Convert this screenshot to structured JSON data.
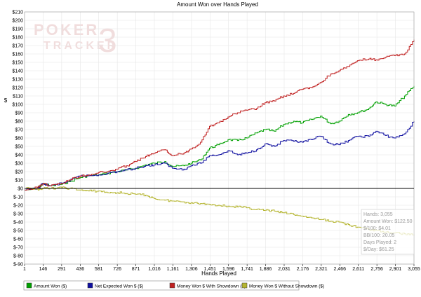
{
  "chart_data": {
    "type": "line",
    "title": "Amount Won over Hands Played",
    "xlabel": "Hands Played",
    "ylabel": "$",
    "xlim": [
      1,
      3055
    ],
    "ylim": [
      -90,
      210
    ],
    "x_ticks": [
      "1",
      "146",
      "291",
      "436",
      "581",
      "726",
      "871",
      "1,016",
      "1,161",
      "1,306",
      "1,451",
      "1,596",
      "1,741",
      "1,886",
      "2,031",
      "2,176",
      "2,321",
      "2,466",
      "2,611",
      "2,756",
      "2,901",
      "3,055"
    ],
    "y_ticks": [
      {
        "value": 210,
        "label": "$210"
      },
      {
        "value": 200,
        "label": "$200"
      },
      {
        "value": 190,
        "label": "$190"
      },
      {
        "value": 180,
        "label": "$180"
      },
      {
        "value": 170,
        "label": "$170"
      },
      {
        "value": 160,
        "label": "$160"
      },
      {
        "value": 150,
        "label": "$150"
      },
      {
        "value": 140,
        "label": "$140"
      },
      {
        "value": 130,
        "label": "$130"
      },
      {
        "value": 120,
        "label": "$120"
      },
      {
        "value": 110,
        "label": "$110"
      },
      {
        "value": 100,
        "label": "$100"
      },
      {
        "value": 90,
        "label": "$90"
      },
      {
        "value": 80,
        "label": "$80"
      },
      {
        "value": 70,
        "label": "$70"
      },
      {
        "value": 60,
        "label": "$60"
      },
      {
        "value": 50,
        "label": "$50"
      },
      {
        "value": 40,
        "label": "$40"
      },
      {
        "value": 30,
        "label": "$30"
      },
      {
        "value": 20,
        "label": "$20"
      },
      {
        "value": 10,
        "label": "$10"
      },
      {
        "value": 0,
        "label": "$0"
      },
      {
        "value": -10,
        "label": "$-10"
      },
      {
        "value": -20,
        "label": "$-20"
      },
      {
        "value": -30,
        "label": "$-30"
      },
      {
        "value": -40,
        "label": "$-40"
      },
      {
        "value": -50,
        "label": "$-50"
      },
      {
        "value": -60,
        "label": "$-60"
      },
      {
        "value": -70,
        "label": "$-70"
      },
      {
        "value": -80,
        "label": "$-80"
      },
      {
        "value": -90,
        "label": "$-90"
      }
    ],
    "grid": true,
    "legend_position": "bottom",
    "series": [
      {
        "name": "Amount Won ($)",
        "color": "#00a000",
        "x": [
          1,
          100,
          146,
          200,
          291,
          350,
          436,
          500,
          581,
          650,
          726,
          800,
          871,
          950,
          1016,
          1100,
          1161,
          1250,
          1306,
          1380,
          1451,
          1520,
          1596,
          1670,
          1741,
          1820,
          1886,
          1960,
          2031,
          2110,
          2176,
          2250,
          2321,
          2400,
          2466,
          2540,
          2611,
          2700,
          2756,
          2830,
          2901,
          2980,
          3055
        ],
        "y": [
          -2,
          0,
          6,
          3,
          5,
          8,
          13,
          15,
          16,
          18,
          20,
          22,
          24,
          28,
          30,
          32,
          26,
          27,
          30,
          34,
          48,
          52,
          58,
          57,
          60,
          66,
          70,
          68,
          76,
          80,
          78,
          82,
          86,
          77,
          80,
          88,
          90,
          95,
          103,
          100,
          98,
          110,
          122
        ]
      },
      {
        "name": "Net Expected Won $ ($)",
        "color": "#1010a0",
        "x": [
          1,
          100,
          146,
          200,
          291,
          350,
          436,
          500,
          581,
          650,
          726,
          800,
          871,
          950,
          1016,
          1100,
          1161,
          1250,
          1306,
          1380,
          1451,
          1520,
          1596,
          1670,
          1741,
          1820,
          1886,
          1960,
          2031,
          2110,
          2176,
          2250,
          2321,
          2400,
          2466,
          2540,
          2611,
          2700,
          2756,
          2830,
          2901,
          2980,
          3055
        ],
        "y": [
          -2,
          0,
          6,
          3,
          6,
          9,
          15,
          15,
          16,
          18,
          20,
          22,
          24,
          27,
          28,
          30,
          24,
          23,
          27,
          30,
          39,
          40,
          45,
          40,
          42,
          46,
          53,
          50,
          57,
          56,
          55,
          58,
          62,
          53,
          52,
          57,
          62,
          62,
          68,
          63,
          60,
          65,
          80
        ]
      },
      {
        "name": "Money Won $ With Showdown ($)",
        "color": "#c02020",
        "x": [
          1,
          100,
          146,
          200,
          291,
          350,
          436,
          500,
          581,
          650,
          726,
          800,
          871,
          950,
          1016,
          1100,
          1161,
          1250,
          1306,
          1380,
          1451,
          1520,
          1596,
          1670,
          1741,
          1820,
          1886,
          1960,
          2031,
          2110,
          2176,
          2250,
          2321,
          2400,
          2466,
          2540,
          2611,
          2700,
          2756,
          2830,
          2901,
          2980,
          3055
        ],
        "y": [
          -2,
          1,
          6,
          3,
          6,
          10,
          15,
          16,
          19,
          20,
          23,
          27,
          32,
          38,
          42,
          46,
          39,
          42,
          47,
          55,
          74,
          78,
          85,
          90,
          93,
          95,
          102,
          104,
          110,
          113,
          118,
          120,
          126,
          136,
          140,
          145,
          152,
          154,
          153,
          156,
          158,
          160,
          177
        ]
      },
      {
        "name": "Money Won $ Without Showdown ($)",
        "color": "#b5b530",
        "x": [
          1,
          100,
          146,
          200,
          291,
          350,
          436,
          500,
          581,
          650,
          726,
          800,
          871,
          950,
          1016,
          1100,
          1161,
          1250,
          1306,
          1380,
          1451,
          1520,
          1596,
          1670,
          1741,
          1820,
          1886,
          1960,
          2031,
          2110,
          2176,
          2250,
          2321,
          2400,
          2466,
          2540,
          2611,
          2700,
          2756,
          2830,
          2901,
          2980,
          3055
        ],
        "y": [
          0,
          -1,
          0,
          0,
          1,
          0,
          -2,
          -3,
          -3,
          -5,
          -5,
          -6,
          -7,
          -8,
          -12,
          -14,
          -15,
          -16,
          -17,
          -18,
          -19,
          -20,
          -21,
          -22,
          -23,
          -25,
          -26,
          -27,
          -29,
          -31,
          -33,
          -35,
          -37,
          -39,
          -40,
          -43,
          -46,
          -49,
          -50,
          -52,
          -53,
          -54,
          -55
        ]
      }
    ],
    "stats_box": [
      "Hands: 3,055",
      "Amount Won: $122.50",
      "$/100: $4.01",
      "BB/100: 20.05",
      "Days Played: 2",
      "$/Day: $61.25"
    ]
  },
  "watermark": {
    "line1": "POKER",
    "line2": "TRACKER",
    "suffix": "3"
  },
  "colors": {
    "grid": "#e6e6e6",
    "axis": "#000000",
    "legend_border": "#888888"
  }
}
